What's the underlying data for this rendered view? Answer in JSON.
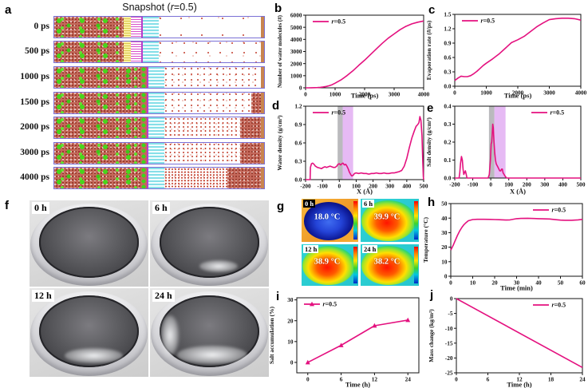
{
  "letters": {
    "a": "a",
    "b": "b",
    "c": "c",
    "d": "d",
    "e": "e",
    "f": "f",
    "g": "g",
    "h": "h",
    "i": "i",
    "j": "j"
  },
  "accent": "#e4117f",
  "panel_a": {
    "title": {
      "pre": "Snapshot (",
      "it": "r",
      "post": "=0.5)"
    },
    "rows": [
      {
        "label": "0 ps"
      },
      {
        "label": "500 ps"
      },
      {
        "label": "1000 ps"
      },
      {
        "label": "1500 ps"
      },
      {
        "label": "2000 ps"
      },
      {
        "label": "3000 ps"
      },
      {
        "label": "4000 ps"
      }
    ]
  },
  "panel_f": {
    "photos": [
      {
        "label": "0 h"
      },
      {
        "label": "6 h"
      },
      {
        "label": "12 h"
      },
      {
        "label": "24 h"
      }
    ]
  },
  "panel_g": {
    "tiles": [
      {
        "label": "0 h",
        "temp": "18.0 °C"
      },
      {
        "label": "6 h",
        "temp": "39.9 °C"
      },
      {
        "label": "12 h",
        "temp": "38.9 °C"
      },
      {
        "label": "24 h",
        "temp": "38.2 °C"
      }
    ]
  },
  "chart_data": {
    "b": {
      "type": "line",
      "xlabel": "Time (ps)",
      "ylabel": "Number of water molecules (#)",
      "xlim": [
        0,
        4000
      ],
      "ylim": [
        0,
        6000
      ],
      "xticks": [
        0,
        1000,
        2000,
        3000,
        4000
      ],
      "xtick_labels": [
        "0",
        "1000",
        "2000",
        "3000",
        "4000"
      ],
      "yticks": [
        0,
        1000,
        2000,
        3000,
        4000,
        5000,
        6000
      ],
      "ytick_labels": [
        "0",
        "1000",
        "2000",
        "3000",
        "4000",
        "5000",
        "6000"
      ],
      "legend": {
        "it": "r",
        "post": "=0.5",
        "pos": "tl"
      },
      "color": "#e4117f",
      "x": [
        0,
        100,
        200,
        300,
        400,
        500,
        600,
        700,
        800,
        900,
        1000,
        1200,
        1400,
        1600,
        1800,
        2000,
        2200,
        2400,
        2600,
        2800,
        3000,
        3200,
        3400,
        3600,
        3800,
        4000
      ],
      "y": [
        0,
        2,
        5,
        10,
        20,
        40,
        70,
        110,
        170,
        260,
        380,
        650,
        1000,
        1400,
        1850,
        2280,
        2750,
        3220,
        3680,
        4100,
        4450,
        4800,
        5080,
        5280,
        5420,
        5520
      ]
    },
    "c": {
      "type": "line",
      "xlabel": "Time (ps)",
      "ylabel": "Evaporation rate (#/ps)",
      "xlim": [
        0,
        4000
      ],
      "ylim": [
        0,
        1.5
      ],
      "xticks": [
        0,
        1000,
        2000,
        3000,
        4000
      ],
      "xtick_labels": [
        "0",
        "1000",
        "2000",
        "3000",
        "4000"
      ],
      "yticks": [
        0,
        0.3,
        0.6,
        0.9,
        1.2,
        1.5
      ],
      "ytick_labels": [
        "0.0",
        "0.3",
        "0.6",
        "0.9",
        "1.2",
        "1.5"
      ],
      "legend": {
        "it": "r",
        "post": "=0.5",
        "pos": "tl"
      },
      "color": "#e4117f",
      "x": [
        0,
        100,
        200,
        300,
        400,
        500,
        600,
        700,
        800,
        900,
        1000,
        1200,
        1400,
        1600,
        1800,
        2000,
        2200,
        2400,
        2600,
        2800,
        3000,
        3200,
        3400,
        3600,
        3800,
        4000
      ],
      "y": [
        0.12,
        0.17,
        0.21,
        0.2,
        0.2,
        0.22,
        0.26,
        0.31,
        0.37,
        0.43,
        0.48,
        0.57,
        0.67,
        0.79,
        0.91,
        0.97,
        1.04,
        1.14,
        1.24,
        1.32,
        1.39,
        1.41,
        1.42,
        1.42,
        1.41,
        1.38
      ]
    },
    "d": {
      "type": "line",
      "xlabel": "X (Å)",
      "ylabel": "Water density (g/cm³)",
      "xlim": [
        -200,
        500
      ],
      "ylim": [
        0,
        1.2
      ],
      "xticks": [
        -200,
        -100,
        0,
        100,
        200,
        300,
        400,
        500
      ],
      "xtick_labels": [
        "-200",
        "-100",
        "0",
        "100",
        "200",
        "300",
        "400",
        "500"
      ],
      "yticks": [
        0,
        0.3,
        0.6,
        0.9,
        1.2
      ],
      "ytick_labels": [
        "0.0",
        "0.3",
        "0.6",
        "0.9",
        "1.2"
      ],
      "legend": {
        "it": "r",
        "post": "=0.5",
        "pos": "tl"
      },
      "color": "#e4117f",
      "bands": [
        {
          "x1": -10,
          "x2": 20,
          "color": "#a9a9ad",
          "opacity": 0.8
        },
        {
          "x1": 20,
          "x2": 82,
          "color": "#dc9df0",
          "opacity": 0.7
        }
      ],
      "x": [
        -200,
        -173,
        -171,
        -165,
        -158,
        -150,
        -142,
        -130,
        -118,
        -105,
        -95,
        -85,
        -75,
        -65,
        -55,
        -45,
        -35,
        -25,
        -15,
        -8,
        0,
        8,
        15,
        22,
        30,
        38,
        45,
        52,
        60,
        68,
        75,
        82,
        90,
        100,
        115,
        130,
        145,
        160,
        175,
        190,
        205,
        220,
        235,
        250,
        265,
        280,
        295,
        310,
        325,
        340,
        355,
        370,
        385,
        400,
        415,
        430,
        445,
        455,
        465,
        472,
        478,
        484,
        490,
        495,
        498,
        500
      ],
      "y": [
        0,
        0,
        0.2,
        0.26,
        0.27,
        0.25,
        0.22,
        0.2,
        0.19,
        0.18,
        0.2,
        0.21,
        0.2,
        0.21,
        0.22,
        0.21,
        0.2,
        0.2,
        0.22,
        0.25,
        0.26,
        0.24,
        0.26,
        0.27,
        0.24,
        0.25,
        0.22,
        0.18,
        0.12,
        0.08,
        0.06,
        0.07,
        0.1,
        0.11,
        0.1,
        0.11,
        0.1,
        0.1,
        0.09,
        0.1,
        0.1,
        0.11,
        0.1,
        0.1,
        0.11,
        0.1,
        0.1,
        0.11,
        0.11,
        0.12,
        0.13,
        0.15,
        0.22,
        0.35,
        0.52,
        0.68,
        0.8,
        0.87,
        0.9,
        0.93,
        1.03,
        0.97,
        0.72,
        0.3,
        0.05,
        0
      ]
    },
    "e": {
      "type": "line",
      "xlabel": "X (Å)",
      "ylabel": "Salt density (g/cm³)",
      "xlim": [
        -200,
        500
      ],
      "ylim": [
        0,
        0.4
      ],
      "xticks": [
        -200,
        -100,
        0,
        100,
        200,
        300,
        400,
        500
      ],
      "xtick_labels": [
        "-200",
        "-100",
        "0",
        "100",
        "200",
        "300",
        "400",
        "500"
      ],
      "yticks": [
        0,
        0.1,
        0.2,
        0.3,
        0.4
      ],
      "ytick_labels": [
        "0.0",
        "0.1",
        "0.2",
        "0.3",
        "0.4"
      ],
      "legend": {
        "it": "r",
        "post": "=0.5",
        "pos": "tr"
      },
      "color": "#e4117f",
      "bands": [
        {
          "x1": -10,
          "x2": 20,
          "color": "#a9a9ad",
          "opacity": 0.8
        },
        {
          "x1": 20,
          "x2": 82,
          "color": "#dc9df0",
          "opacity": 0.7
        }
      ],
      "x": [
        -200,
        -176,
        -172,
        -168,
        -163,
        -158,
        -154,
        -150,
        -146,
        -141,
        -136,
        -132,
        -60,
        -30,
        -15,
        -8,
        -2,
        2,
        5,
        8,
        11,
        14,
        18,
        22,
        26,
        30,
        35,
        40,
        45,
        50,
        55,
        60,
        64,
        68,
        74,
        80,
        88,
        150,
        300,
        500
      ],
      "y": [
        0,
        0,
        0.03,
        0.08,
        0.12,
        0.1,
        0.05,
        0.02,
        0.03,
        0.04,
        0.02,
        0,
        0,
        0,
        0,
        0.02,
        0.1,
        0.19,
        0.2,
        0.24,
        0.3,
        0.28,
        0.2,
        0.14,
        0.1,
        0.08,
        0.07,
        0.06,
        0.05,
        0.04,
        0.04,
        0.05,
        0.05,
        0.03,
        0.02,
        0.01,
        0,
        0,
        0,
        0
      ]
    },
    "h": {
      "type": "line",
      "xlabel": "Time (min)",
      "ylabel": "Temperature (°C)",
      "xlim": [
        0,
        60
      ],
      "ylim": [
        0,
        50
      ],
      "xticks": [
        0,
        10,
        20,
        30,
        40,
        50,
        60
      ],
      "xtick_labels": [
        "0",
        "10",
        "20",
        "30",
        "40",
        "50",
        "60"
      ],
      "yticks": [
        0,
        10,
        20,
        30,
        40,
        50
      ],
      "ytick_labels": [
        "0",
        "10",
        "20",
        "30",
        "40",
        "50"
      ],
      "legend": {
        "it": "r",
        "post": "=0.5",
        "pos": "tr"
      },
      "color": "#e4117f",
      "x": [
        0,
        1,
        2,
        3,
        4,
        5,
        6,
        7,
        8,
        10,
        12,
        15,
        18,
        20,
        22,
        25,
        27,
        30,
        32,
        35,
        38,
        40,
        42,
        45,
        48,
        50,
        52,
        55,
        58,
        60
      ],
      "y": [
        18,
        21,
        24.5,
        28,
        31,
        33.5,
        35.5,
        37,
        38.2,
        39,
        39.2,
        39.2,
        39.1,
        39,
        38.9,
        38.7,
        38.8,
        39.6,
        39.8,
        39.9,
        39.7,
        39.6,
        39.5,
        39.4,
        38.9,
        38.6,
        38.5,
        38.5,
        38.8,
        39.1
      ]
    },
    "i": {
      "type": "line",
      "xlabel": "Time (h)",
      "ylabel": "Salt accumulation (%)",
      "xcats": [
        "0",
        "6",
        "12",
        "24"
      ],
      "values": [
        0,
        8.2,
        17.6,
        20.3
      ],
      "ylim": [
        -5,
        31
      ],
      "yticks": [
        0,
        10,
        20,
        30
      ],
      "ytick_labels": [
        "0",
        "10",
        "20",
        "30"
      ],
      "marker": "triangle",
      "legend": {
        "it": "r",
        "post": "=0.5",
        "pos": "tl"
      },
      "color": "#e4117f"
    },
    "j": {
      "type": "line",
      "xlabel": "Time (h)",
      "ylabel": "Mass change (kg/m²)",
      "xlim": [
        0,
        24
      ],
      "ylim": [
        -25,
        0
      ],
      "xticks": [
        0,
        6,
        12,
        18,
        24
      ],
      "xtick_labels": [
        "0",
        "6",
        "12",
        "18",
        "24"
      ],
      "yticks": [
        0,
        -5,
        -10,
        -15,
        -20,
        -25
      ],
      "ytick_labels": [
        "0",
        "-5",
        "-10",
        "-15",
        "-20",
        "-25"
      ],
      "legend": {
        "it": "r",
        "post": "=0.5",
        "pos": "tr"
      },
      "color": "#e4117f",
      "x": [
        0,
        24
      ],
      "y": [
        0,
        -23.2
      ]
    }
  }
}
